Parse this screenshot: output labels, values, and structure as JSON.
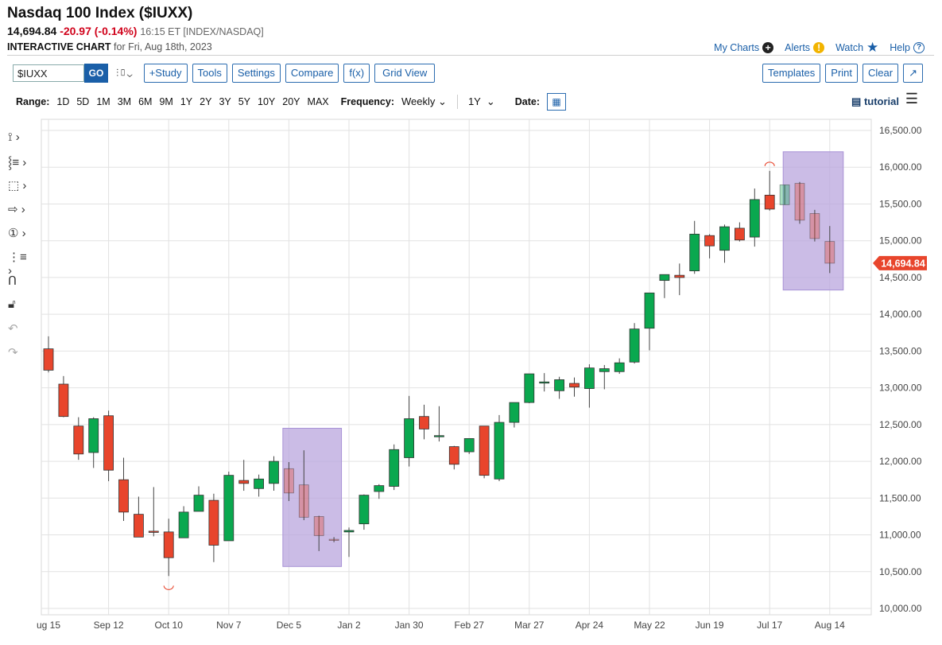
{
  "header": {
    "title": "Nasdaq 100 Index ($IUXX)",
    "price": "14,694.84",
    "change": "-20.97 (-0.14%)",
    "time": "16:15 ET [INDEX/NASDAQ]",
    "chart_label": "INTERACTIVE CHART",
    "chart_for": "for Fri, Aug 18th, 2023"
  },
  "top_links": {
    "my_charts": "My Charts",
    "alerts": "Alerts",
    "watch": "Watch",
    "help": "Help"
  },
  "toolbar": {
    "symbol": "$IUXX",
    "go": "GO",
    "study": "+Study",
    "tools": "Tools",
    "settings": "Settings",
    "compare": "Compare",
    "fx": "f(x)",
    "grid_view": "Grid View",
    "templates": "Templates",
    "print": "Print",
    "clear": "Clear",
    "popout": "↗"
  },
  "range_bar": {
    "range_label": "Range:",
    "ranges": [
      "1D",
      "5D",
      "1M",
      "3M",
      "6M",
      "9M",
      "1Y",
      "2Y",
      "3Y",
      "5Y",
      "10Y",
      "20Y",
      "MAX"
    ],
    "frequency_label": "Frequency:",
    "frequency": "Weekly",
    "period": "1Y",
    "date_label": "Date:",
    "tutorial": "tutorial"
  },
  "colors": {
    "up": "#0aa84f",
    "down": "#e8452c",
    "highlight": "#b9a6dd",
    "link": "#1a5fa8",
    "last_price_bg": "#e8452c"
  },
  "chart_data": {
    "type": "candlestick",
    "ylim": [
      10000,
      16500
    ],
    "y_ticks": [
      "16,500.00",
      "16,000.00",
      "15,500.00",
      "15,000.00",
      "14,500.00",
      "14,000.00",
      "13,500.00",
      "13,000.00",
      "12,500.00",
      "12,000.00",
      "11,500.00",
      "11,000.00",
      "10,500.00",
      "10,000.00"
    ],
    "y_tick_values": [
      16500,
      16000,
      15500,
      15000,
      14500,
      14000,
      13500,
      13000,
      12500,
      12000,
      11500,
      11000,
      10500,
      10000
    ],
    "x_ticks": [
      "ug 15",
      "Sep 12",
      "Oct 10",
      "Nov 7",
      "Dec 5",
      "Jan 2",
      "Jan 30",
      "Feb 27",
      "Mar 27",
      "Apr 24",
      "May 22",
      "Jun 19",
      "Jul 17",
      "Aug 14"
    ],
    "x_tick_weeks": [
      0,
      4,
      8,
      12,
      16,
      20,
      24,
      28,
      32,
      36,
      40,
      44,
      48,
      52
    ],
    "last_price": "14,694.84",
    "highlight_boxes": [
      {
        "week_from": 15.6,
        "week_to": 19.5,
        "low": 10570,
        "high": 12450
      },
      {
        "week_from": 48.9,
        "week_to": 52.9,
        "low": 14330,
        "high": 16210
      }
    ],
    "candles": [
      {
        "o": 13530,
        "h": 13700,
        "l": 13210,
        "c": 13240
      },
      {
        "o": 13050,
        "h": 13160,
        "l": 12600,
        "c": 12610
      },
      {
        "o": 12480,
        "h": 12600,
        "l": 12020,
        "c": 12100
      },
      {
        "o": 12120,
        "h": 12600,
        "l": 11910,
        "c": 12580
      },
      {
        "o": 12620,
        "h": 12690,
        "l": 11730,
        "c": 11880
      },
      {
        "o": 11750,
        "h": 12050,
        "l": 11190,
        "c": 11310
      },
      {
        "o": 11280,
        "h": 11520,
        "l": 10990,
        "c": 10970
      },
      {
        "o": 11050,
        "h": 11650,
        "l": 10980,
        "c": 11040
      },
      {
        "o": 11040,
        "h": 11220,
        "l": 10440,
        "c": 10690
      },
      {
        "o": 10960,
        "h": 11390,
        "l": 10960,
        "c": 11310
      },
      {
        "o": 11320,
        "h": 11660,
        "l": 11320,
        "c": 11540
      },
      {
        "o": 11470,
        "h": 11560,
        "l": 10630,
        "c": 10860
      },
      {
        "o": 10920,
        "h": 11860,
        "l": 10920,
        "c": 11810
      },
      {
        "o": 11740,
        "h": 12020,
        "l": 11600,
        "c": 11700
      },
      {
        "o": 11630,
        "h": 11820,
        "l": 11520,
        "c": 11760
      },
      {
        "o": 11700,
        "h": 12070,
        "l": 11600,
        "c": 12000
      },
      {
        "o": 11900,
        "h": 11990,
        "l": 11460,
        "c": 11570
      },
      {
        "o": 11680,
        "h": 12150,
        "l": 11200,
        "c": 11240
      },
      {
        "o": 11250,
        "h": 11260,
        "l": 10780,
        "c": 10990
      },
      {
        "o": 10940,
        "h": 10970,
        "l": 10900,
        "c": 10930
      },
      {
        "o": 11040,
        "h": 11100,
        "l": 10700,
        "c": 11060
      },
      {
        "o": 11150,
        "h": 11550,
        "l": 11070,
        "c": 11540
      },
      {
        "o": 11590,
        "h": 11690,
        "l": 11490,
        "c": 11670
      },
      {
        "o": 11660,
        "h": 12230,
        "l": 11610,
        "c": 12160
      },
      {
        "o": 12050,
        "h": 12890,
        "l": 11930,
        "c": 12580
      },
      {
        "o": 12610,
        "h": 12770,
        "l": 12300,
        "c": 12440
      },
      {
        "o": 12350,
        "h": 12750,
        "l": 12270,
        "c": 12350
      },
      {
        "o": 12200,
        "h": 12210,
        "l": 11890,
        "c": 11960
      },
      {
        "o": 12130,
        "h": 12300,
        "l": 12100,
        "c": 12310
      },
      {
        "o": 12480,
        "h": 12480,
        "l": 11770,
        "c": 11810
      },
      {
        "o": 11760,
        "h": 12630,
        "l": 11730,
        "c": 12530
      },
      {
        "o": 12530,
        "h": 12770,
        "l": 12460,
        "c": 12800
      },
      {
        "o": 12800,
        "h": 13180,
        "l": 12790,
        "c": 13190
      },
      {
        "o": 13080,
        "h": 13200,
        "l": 12950,
        "c": 13080
      },
      {
        "o": 12960,
        "h": 13150,
        "l": 12850,
        "c": 13110
      },
      {
        "o": 13060,
        "h": 13140,
        "l": 12880,
        "c": 13010
      },
      {
        "o": 12990,
        "h": 13320,
        "l": 12730,
        "c": 13270
      },
      {
        "o": 13220,
        "h": 13310,
        "l": 12980,
        "c": 13260
      },
      {
        "o": 13220,
        "h": 13400,
        "l": 13190,
        "c": 13340
      },
      {
        "o": 13350,
        "h": 13880,
        "l": 13330,
        "c": 13800
      },
      {
        "o": 13810,
        "h": 14280,
        "l": 13510,
        "c": 14290
      },
      {
        "o": 14460,
        "h": 14530,
        "l": 14220,
        "c": 14540
      },
      {
        "o": 14530,
        "h": 14690,
        "l": 14260,
        "c": 14500
      },
      {
        "o": 14590,
        "h": 15270,
        "l": 14550,
        "c": 15090
      },
      {
        "o": 15070,
        "h": 15090,
        "l": 14760,
        "c": 14930
      },
      {
        "o": 14870,
        "h": 15220,
        "l": 14700,
        "c": 15190
      },
      {
        "o": 15170,
        "h": 15250,
        "l": 14990,
        "c": 15010
      },
      {
        "o": 15050,
        "h": 15710,
        "l": 14920,
        "c": 15560
      },
      {
        "o": 15620,
        "h": 15950,
        "l": 15410,
        "c": 15430
      },
      {
        "o": 15490,
        "h": 15760,
        "l": 15490,
        "c": 15760
      },
      {
        "o": 15780,
        "h": 15800,
        "l": 15230,
        "c": 15280
      },
      {
        "o": 15370,
        "h": 15420,
        "l": 14990,
        "c": 15030
      },
      {
        "o": 14990,
        "h": 15200,
        "l": 14560,
        "c": 14694.84
      }
    ]
  }
}
